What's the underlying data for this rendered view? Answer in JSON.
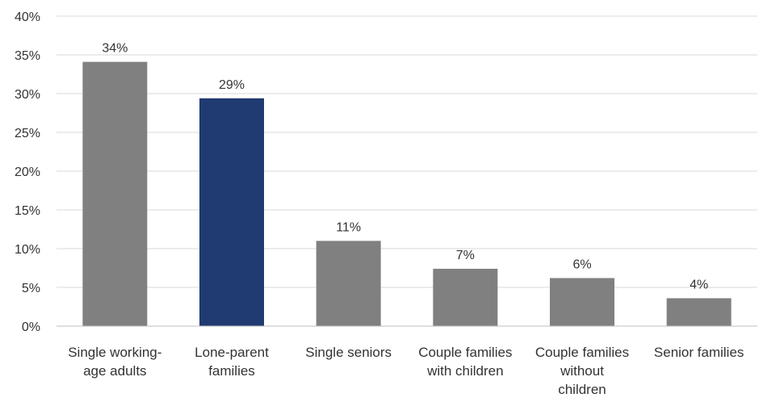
{
  "chart_data": {
    "type": "bar",
    "title": "",
    "xlabel": "",
    "ylabel": "",
    "ylim": [
      0,
      40
    ],
    "yticks": [
      "0%",
      "5%",
      "10%",
      "15%",
      "20%",
      "25%",
      "30%",
      "35%",
      "40%"
    ],
    "grid": true,
    "categories": [
      [
        "Single working-",
        "age adults"
      ],
      [
        "Lone-parent",
        "families"
      ],
      [
        "Single seniors"
      ],
      [
        "Couple families",
        "with children"
      ],
      [
        "Couple families",
        "without",
        "children"
      ],
      [
        "Senior families"
      ]
    ],
    "values": [
      34.1,
      29.4,
      11.0,
      7.4,
      6.2,
      3.6
    ],
    "data_labels": [
      "34%",
      "29%",
      "11%",
      "7%",
      "6%",
      "4%"
    ],
    "colors": [
      "#808080",
      "#203A72",
      "#808080",
      "#808080",
      "#808080",
      "#808080"
    ],
    "highlight_index": 1
  }
}
